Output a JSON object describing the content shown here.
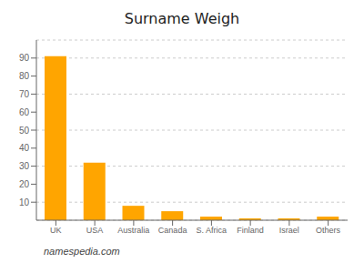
{
  "chart_data": {
    "type": "bar",
    "title": "Surname Weigh",
    "categories": [
      "UK",
      "USA",
      "Australia",
      "Canada",
      "S. Africa",
      "Finland",
      "Israel",
      "Others"
    ],
    "values": [
      91,
      32,
      8,
      5,
      2,
      1,
      1,
      2
    ],
    "color": "#FFA500",
    "ylim": [
      0,
      100
    ],
    "yticks": [
      10,
      20,
      30,
      40,
      50,
      60,
      70,
      80,
      90
    ],
    "grid": true,
    "annotations": [
      "namespedia.com"
    ]
  }
}
